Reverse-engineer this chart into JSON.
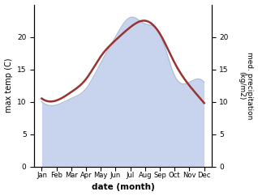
{
  "months": [
    "Jan",
    "Feb",
    "Mar",
    "Apr",
    "May",
    "Jun",
    "Jul",
    "Aug",
    "Sep",
    "Oct",
    "Nov",
    "Dec"
  ],
  "month_positions": [
    1,
    2,
    3,
    4,
    5,
    6,
    7,
    8,
    9,
    10,
    11,
    12
  ],
  "temperature": [
    10.5,
    10.2,
    11.5,
    13.5,
    17.0,
    19.5,
    21.5,
    22.5,
    20.5,
    16.0,
    12.5,
    9.8
  ],
  "precipitation": [
    10.0,
    9.5,
    10.5,
    12.0,
    16.0,
    20.0,
    23.0,
    22.0,
    20.5,
    14.0,
    13.0,
    13.0
  ],
  "temp_color": "#993333",
  "precip_line_color": "#b0bfd8",
  "precip_fill_color": "#c8d4ee",
  "precip_fill_alpha": 1.0,
  "xlabel": "date (month)",
  "ylabel_left": "max temp (C)",
  "ylabel_right": "med. precipitation\n(kg/m2)",
  "ylim_left": [
    0,
    25
  ],
  "ylim_right": [
    0,
    25
  ],
  "yticks_left": [
    0,
    5,
    10,
    15,
    20
  ],
  "yticks_right": [
    0,
    5,
    10,
    15,
    20
  ],
  "background_color": "#ffffff",
  "figsize": [
    3.18,
    2.42
  ],
  "dpi": 100
}
